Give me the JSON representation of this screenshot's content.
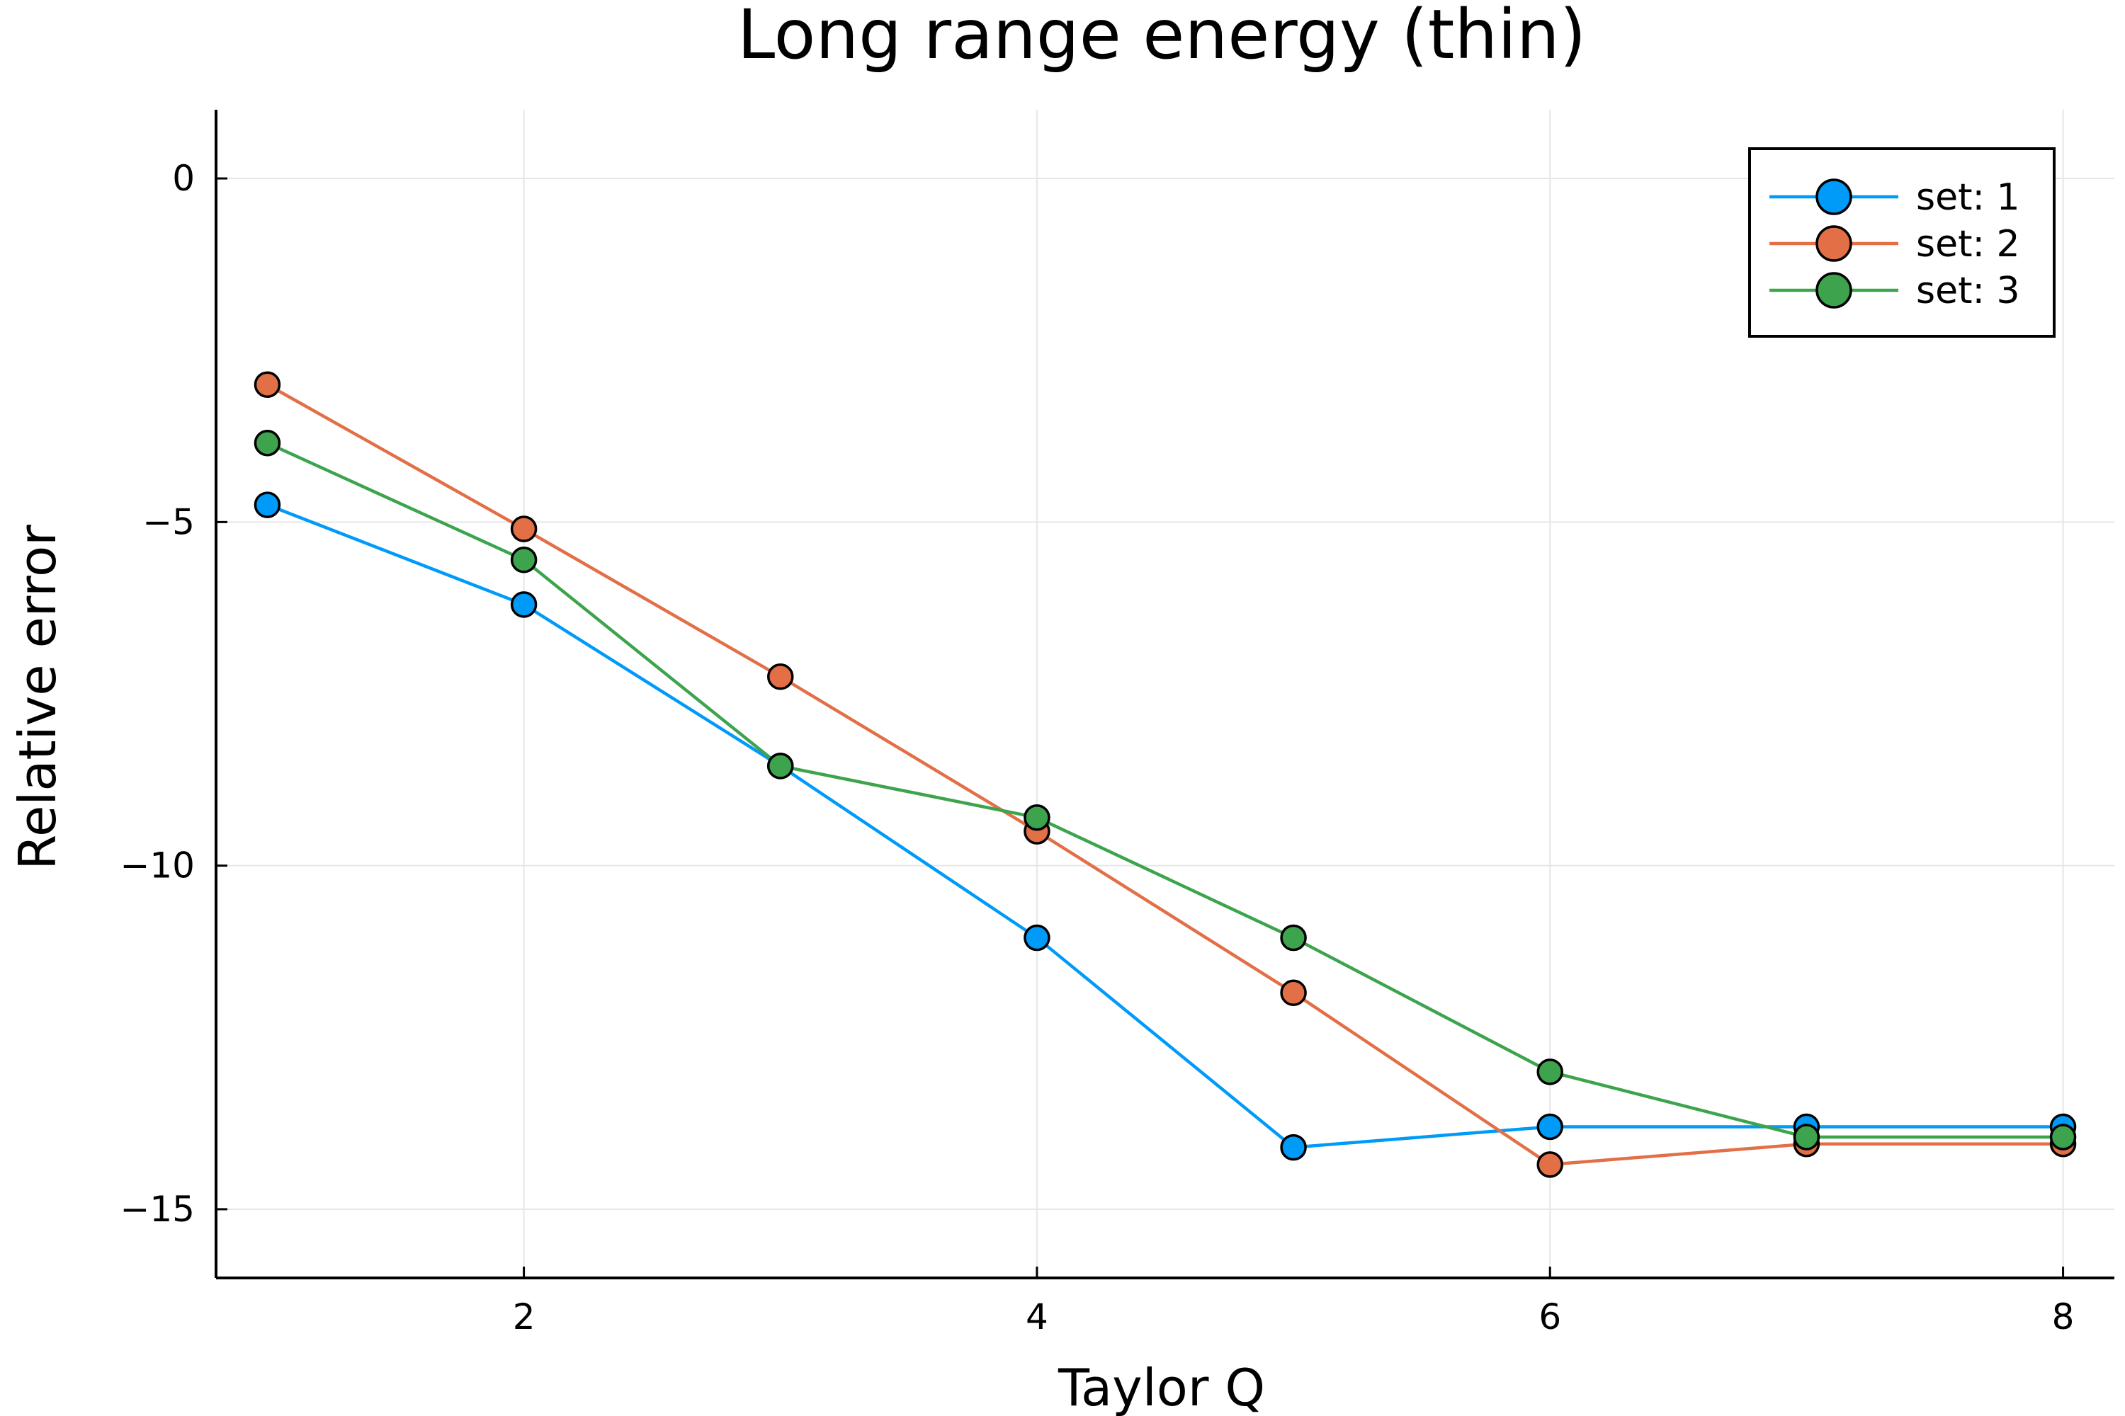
{
  "chart_data": {
    "type": "line",
    "title": "Long range energy (thin)",
    "xlabel": "Taylor Q",
    "ylabel": "Relative error",
    "xlim": [
      0.8,
      8.2
    ],
    "ylim": [
      -16,
      1
    ],
    "xticks": [
      2,
      4,
      6,
      8
    ],
    "yticks": [
      0,
      -5,
      -10,
      -15
    ],
    "ytick_labels": [
      "0",
      "−5",
      "−10",
      "−15"
    ],
    "grid": true,
    "legend_position": "top-right",
    "x": [
      1,
      2,
      3,
      4,
      5,
      6,
      7,
      8
    ],
    "series": [
      {
        "name": "set: 1",
        "color": "#009af9",
        "values": [
          -4.75,
          -6.2,
          -8.55,
          -11.05,
          -14.1,
          -13.8,
          -13.8,
          -13.8
        ]
      },
      {
        "name": "set: 2",
        "color": "#e26f46",
        "values": [
          -3.0,
          -5.1,
          -7.25,
          -9.5,
          -11.85,
          -14.35,
          -14.05,
          -14.05
        ]
      },
      {
        "name": "set: 3",
        "color": "#3da44d",
        "values": [
          -3.85,
          -5.55,
          -8.55,
          -9.3,
          -11.05,
          -13.0,
          -13.95,
          -13.95
        ]
      }
    ]
  }
}
